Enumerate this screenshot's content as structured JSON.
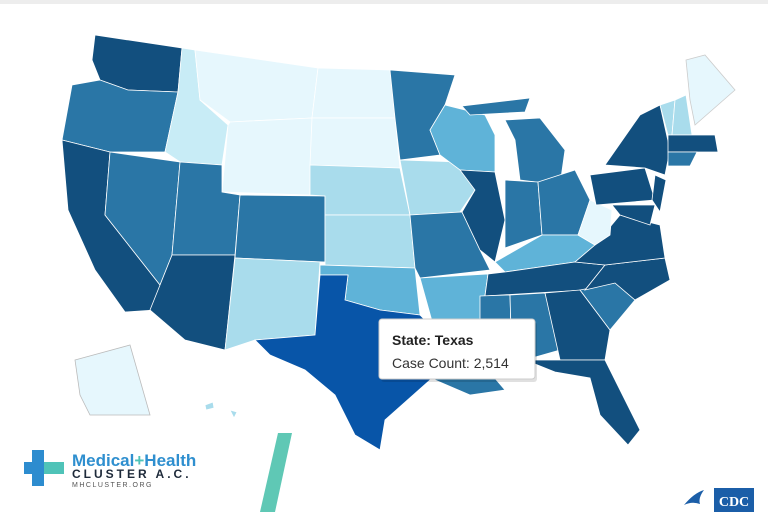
{
  "tooltip": {
    "state_label": "State:",
    "state": "Texas",
    "count_label": "Case Count:",
    "count": "2,514"
  },
  "logo": {
    "name_part1": "Medical",
    "plus": "+",
    "name_part2": "Health",
    "line2": "CLUSTER A.C.",
    "url": "MHCLUSTER.ORG"
  },
  "cdc": "CDC"
}
